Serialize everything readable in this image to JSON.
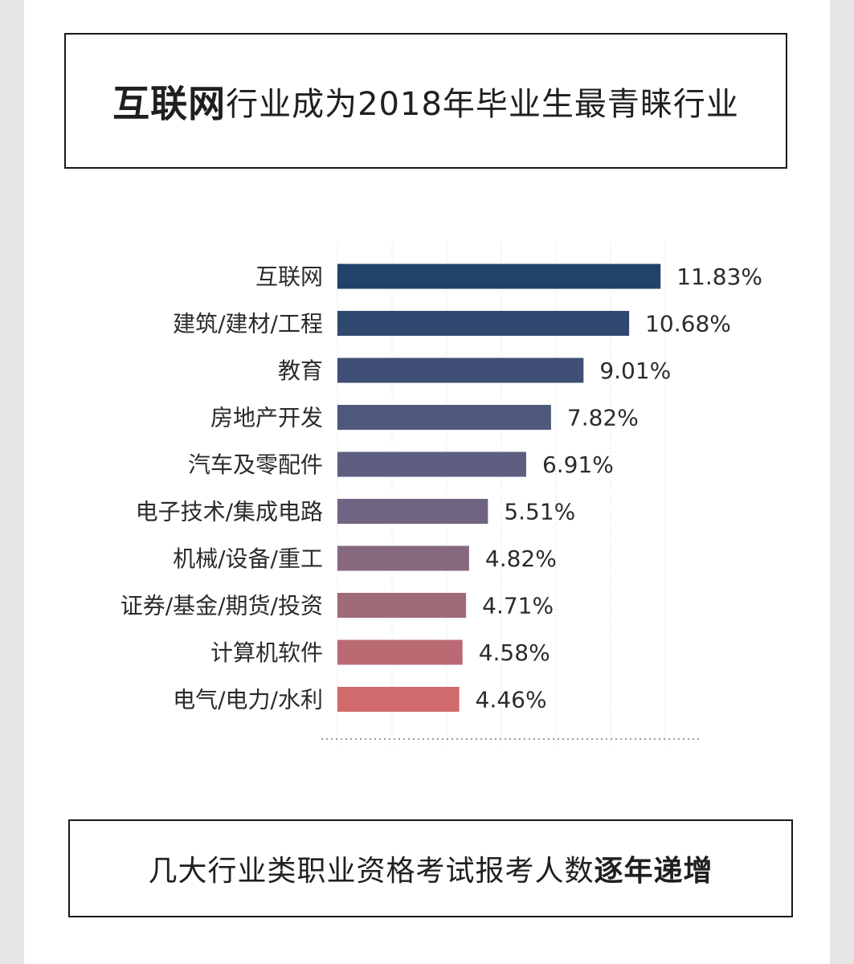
{
  "header": {
    "title_bold": "互联网",
    "title_rest": "行业成为2018年毕业生最青睐行业"
  },
  "footer": {
    "text_normal": "几大行业类职业资格考试报考人数",
    "text_bold": "逐年递增"
  },
  "chart_data": {
    "type": "bar",
    "orientation": "horizontal",
    "title": "",
    "xlabel": "",
    "ylabel": "",
    "categories": [
      "互联网",
      "建筑/建材/工程",
      "教育",
      "房地产开发",
      "汽车及零配件",
      "电子技术/集成电路",
      "机械/设备/重工",
      "证券/基金/期货/投资",
      "计算机软件",
      "电气/电力/水利"
    ],
    "values": [
      11.83,
      10.68,
      9.01,
      7.82,
      6.91,
      5.51,
      4.82,
      4.71,
      4.58,
      4.46
    ],
    "value_labels": [
      "11.83%",
      "10.68%",
      "9.01%",
      "7.82%",
      "6.91%",
      "5.51%",
      "4.82%",
      "4.71%",
      "4.58%",
      "4.46%"
    ],
    "xlim": [
      0,
      13
    ],
    "grid": true,
    "legend": "none",
    "colors": [
      "#22426a",
      "#2f4870",
      "#3f4f76",
      "#4e587b",
      "#5e5f80",
      "#6f6482",
      "#86697f",
      "#a16a78",
      "#b96a72",
      "#d06a6c"
    ]
  }
}
